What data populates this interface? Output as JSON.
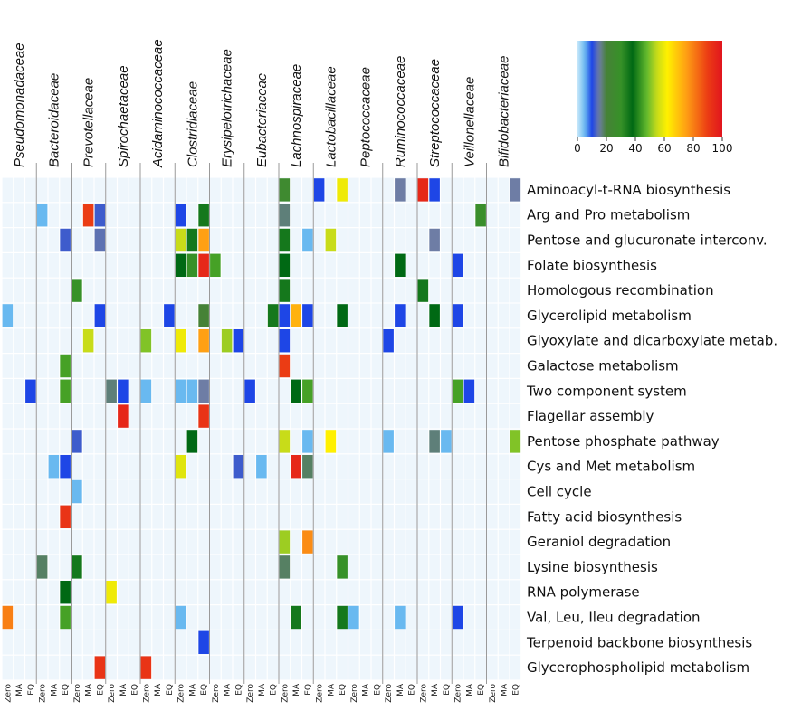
{
  "chart_data": {
    "type": "heatmap",
    "families": [
      "Pseudomonadaceae",
      "Bacteroidaceae",
      "Prevotellaceae",
      "Spirochaetaceae",
      "Acidaminococcaceae",
      "Clostridiaceae",
      "Erysipelotrichaceae",
      "Eubacteriaceae",
      "Lachnospiraceae",
      "Lactobacillaceae",
      "Peptococcaceae",
      "Ruminococcaceae",
      "Streptococcaceae",
      "Veillonellaceae",
      "Bifidobacteriaceae"
    ],
    "conditions": [
      "Zero",
      "MA",
      "EQ"
    ],
    "pathways": [
      "Aminoacyl-t-RNA biosynthesis",
      "Arg and Pro metabolism",
      "Pentose and glucuronate interconv.",
      "Folate biosynthesis",
      "Homologous recombination",
      "Glycerolipid metabolism",
      "Glyoxylate and dicarboxylate metab.",
      "Galactose metabolism",
      "Two component system",
      "Flagellar assembly",
      "Pentose phosphate pathway",
      "Cys and Met metabolism",
      "Cell cycle",
      "Fatty acid biosynthesis",
      "Geraniol degradation",
      "Lysine biosynthesis",
      "RNA polymerase",
      "Val, Leu, Ileu degradation",
      "Terpenoid backbone biosynthesis",
      "Glycerophospholipid metabolism"
    ],
    "legend": {
      "ticks": [
        0,
        20,
        40,
        60,
        80,
        100
      ]
    },
    "cells": [
      [
        0,
        24,
        25
      ],
      [
        0,
        27,
        10
      ],
      [
        0,
        29,
        60
      ],
      [
        0,
        34,
        15
      ],
      [
        0,
        36,
        95
      ],
      [
        0,
        37,
        10
      ],
      [
        0,
        44,
        15
      ],
      [
        1,
        3,
        5
      ],
      [
        1,
        7,
        90
      ],
      [
        1,
        8,
        12
      ],
      [
        1,
        15,
        10
      ],
      [
        1,
        17,
        35
      ],
      [
        1,
        24,
        17
      ],
      [
        1,
        41,
        28
      ],
      [
        2,
        5,
        12
      ],
      [
        2,
        8,
        14
      ],
      [
        2,
        15,
        55
      ],
      [
        2,
        16,
        35
      ],
      [
        2,
        17,
        75
      ],
      [
        2,
        24,
        35
      ],
      [
        2,
        26,
        5
      ],
      [
        2,
        28,
        55
      ],
      [
        2,
        37,
        15
      ],
      [
        3,
        15,
        38
      ],
      [
        3,
        16,
        30
      ],
      [
        3,
        17,
        95
      ],
      [
        3,
        18,
        45
      ],
      [
        3,
        24,
        38
      ],
      [
        3,
        34,
        38
      ],
      [
        3,
        39,
        10
      ],
      [
        4,
        6,
        30
      ],
      [
        4,
        24,
        35
      ],
      [
        4,
        36,
        35
      ],
      [
        5,
        0,
        5
      ],
      [
        5,
        8,
        10
      ],
      [
        5,
        14,
        10
      ],
      [
        5,
        17,
        20
      ],
      [
        5,
        23,
        35
      ],
      [
        5,
        24,
        10
      ],
      [
        5,
        25,
        72
      ],
      [
        5,
        26,
        10
      ],
      [
        5,
        29,
        38
      ],
      [
        5,
        34,
        10
      ],
      [
        5,
        37,
        38
      ],
      [
        5,
        39,
        10
      ],
      [
        6,
        7,
        55
      ],
      [
        6,
        12,
        50
      ],
      [
        6,
        15,
        60
      ],
      [
        6,
        17,
        75
      ],
      [
        6,
        19,
        52
      ],
      [
        6,
        20,
        10
      ],
      [
        6,
        24,
        10
      ],
      [
        6,
        33,
        10
      ],
      [
        7,
        5,
        45
      ],
      [
        7,
        24,
        90
      ],
      [
        8,
        2,
        10
      ],
      [
        8,
        5,
        45
      ],
      [
        8,
        9,
        17
      ],
      [
        8,
        10,
        10
      ],
      [
        8,
        12,
        5
      ],
      [
        8,
        15,
        5
      ],
      [
        8,
        16,
        5
      ],
      [
        8,
        17,
        15
      ],
      [
        8,
        21,
        10
      ],
      [
        8,
        25,
        38
      ],
      [
        8,
        26,
        45
      ],
      [
        8,
        39,
        45
      ],
      [
        8,
        40,
        10
      ],
      [
        9,
        10,
        95
      ],
      [
        9,
        17,
        92
      ],
      [
        10,
        6,
        12
      ],
      [
        10,
        16,
        38
      ],
      [
        10,
        24,
        55
      ],
      [
        10,
        26,
        5
      ],
      [
        10,
        28,
        62
      ],
      [
        10,
        33,
        5
      ],
      [
        10,
        37,
        17
      ],
      [
        10,
        38,
        5
      ],
      [
        10,
        44,
        50
      ],
      [
        11,
        4,
        5
      ],
      [
        11,
        5,
        10
      ],
      [
        11,
        15,
        58
      ],
      [
        11,
        20,
        12
      ],
      [
        11,
        22,
        5
      ],
      [
        11,
        25,
        95
      ],
      [
        11,
        26,
        18
      ],
      [
        12,
        6,
        5
      ],
      [
        13,
        5,
        92
      ],
      [
        14,
        24,
        52
      ],
      [
        14,
        26,
        78
      ],
      [
        15,
        3,
        18
      ],
      [
        15,
        6,
        35
      ],
      [
        15,
        24,
        18
      ],
      [
        15,
        29,
        30
      ],
      [
        16,
        5,
        38
      ],
      [
        16,
        9,
        60
      ],
      [
        17,
        0,
        80
      ],
      [
        17,
        5,
        45
      ],
      [
        17,
        15,
        5
      ],
      [
        17,
        25,
        35
      ],
      [
        17,
        29,
        35
      ],
      [
        17,
        30,
        5
      ],
      [
        17,
        34,
        5
      ],
      [
        17,
        39,
        10
      ],
      [
        18,
        17,
        10
      ],
      [
        19,
        8,
        92
      ],
      [
        19,
        12,
        92
      ]
    ]
  }
}
